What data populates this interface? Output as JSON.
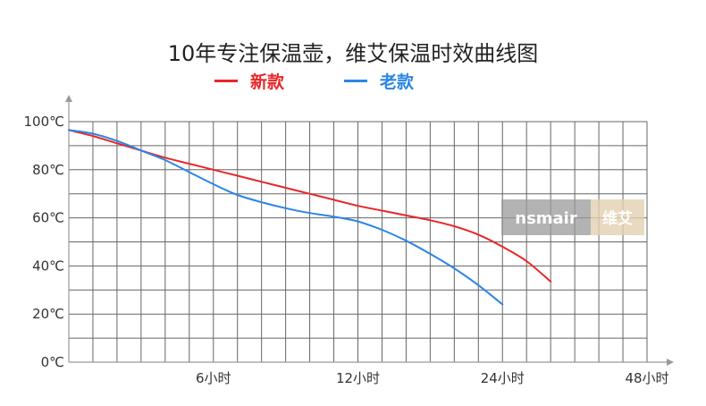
{
  "chart_data": {
    "type": "line",
    "title": "10年专注保温壶，维艾保温时效曲线图",
    "xlabel": "",
    "ylabel": "",
    "x_tick_labels": [
      "6小时",
      "12小时",
      "24小时",
      "48小时"
    ],
    "y_tick_labels": [
      "0℃",
      "20℃",
      "40℃",
      "60℃",
      "80℃",
      "100℃"
    ],
    "ylim": [
      0,
      100
    ],
    "grid": true,
    "legend_position": "top-center",
    "series": [
      {
        "name": "新款",
        "color": "#e8262a",
        "points": [
          [
            0,
            96.5
          ],
          [
            1,
            94
          ],
          [
            2,
            91
          ],
          [
            3,
            88
          ],
          [
            4,
            85
          ],
          [
            5,
            82.5
          ],
          [
            6,
            80
          ],
          [
            7,
            77.5
          ],
          [
            8,
            75
          ],
          [
            9,
            72.5
          ],
          [
            10,
            70
          ],
          [
            11,
            67.5
          ],
          [
            12,
            65
          ],
          [
            13,
            63
          ],
          [
            14,
            61
          ],
          [
            15,
            59
          ],
          [
            16,
            56.5
          ],
          [
            17,
            53
          ],
          [
            18,
            48
          ],
          [
            19,
            42
          ],
          [
            20,
            33.5
          ]
        ]
      },
      {
        "name": "老款",
        "color": "#2b85e4",
        "points": [
          [
            0,
            96.5
          ],
          [
            1,
            95
          ],
          [
            2,
            92
          ],
          [
            3,
            88
          ],
          [
            4,
            84
          ],
          [
            5,
            79
          ],
          [
            6,
            74
          ],
          [
            7,
            69.5
          ],
          [
            8,
            66.5
          ],
          [
            9,
            64
          ],
          [
            10,
            62
          ],
          [
            11,
            60.5
          ],
          [
            12,
            58.5
          ],
          [
            13,
            55
          ],
          [
            14,
            50.5
          ],
          [
            15,
            45
          ],
          [
            16,
            39
          ],
          [
            17,
            32
          ],
          [
            18,
            24
          ]
        ]
      }
    ]
  },
  "watermark": {
    "brand_latin": "nsmair",
    "brand_cn": "维艾"
  }
}
